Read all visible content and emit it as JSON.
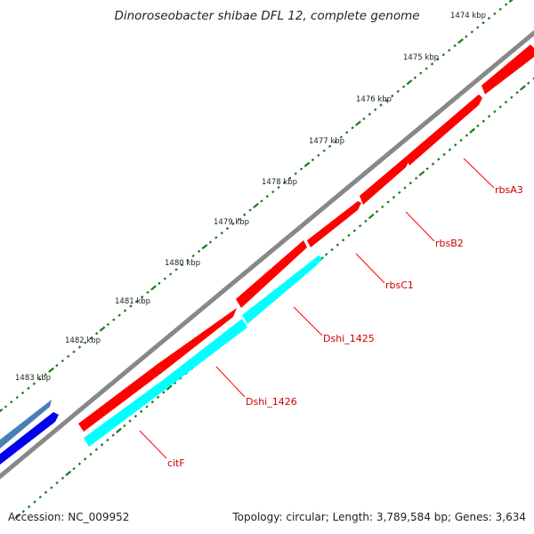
{
  "title": "Dinoroseobacter shibae DFL 12, complete genome",
  "footer": {
    "accession": "Accession: NC_009952",
    "summary": "Topology: circular; Length: 3,789,584 bp; Genes: 3,634"
  },
  "colors": {
    "forward_gene": "#ff0000",
    "reverse_gene": "#00ffff",
    "backbone": "#888888",
    "tick": "#1a7a1a",
    "label_line": "#ff0000",
    "label_text": "#cc0000",
    "other_forward": "#4a7fb5",
    "other_reverse": "#0000ee"
  },
  "kbp_labels": [
    "1474 kbp",
    "1475 kbp",
    "1476 kbp",
    "1477 kbp",
    "1478 kbp",
    "1479 kbp",
    "1480 kbp",
    "1481 kbp",
    "1482 kbp",
    "1483 kbp"
  ],
  "genes": [
    {
      "name": "rbsA3",
      "strand": "+"
    },
    {
      "name": "rbsB2",
      "strand": "+"
    },
    {
      "name": "rbsC1",
      "strand": "+"
    },
    {
      "name": "Dshi_1425",
      "strand": "-"
    },
    {
      "name": "Dshi_1426",
      "strand": "-"
    },
    {
      "name": "citF",
      "strand": "-"
    }
  ]
}
